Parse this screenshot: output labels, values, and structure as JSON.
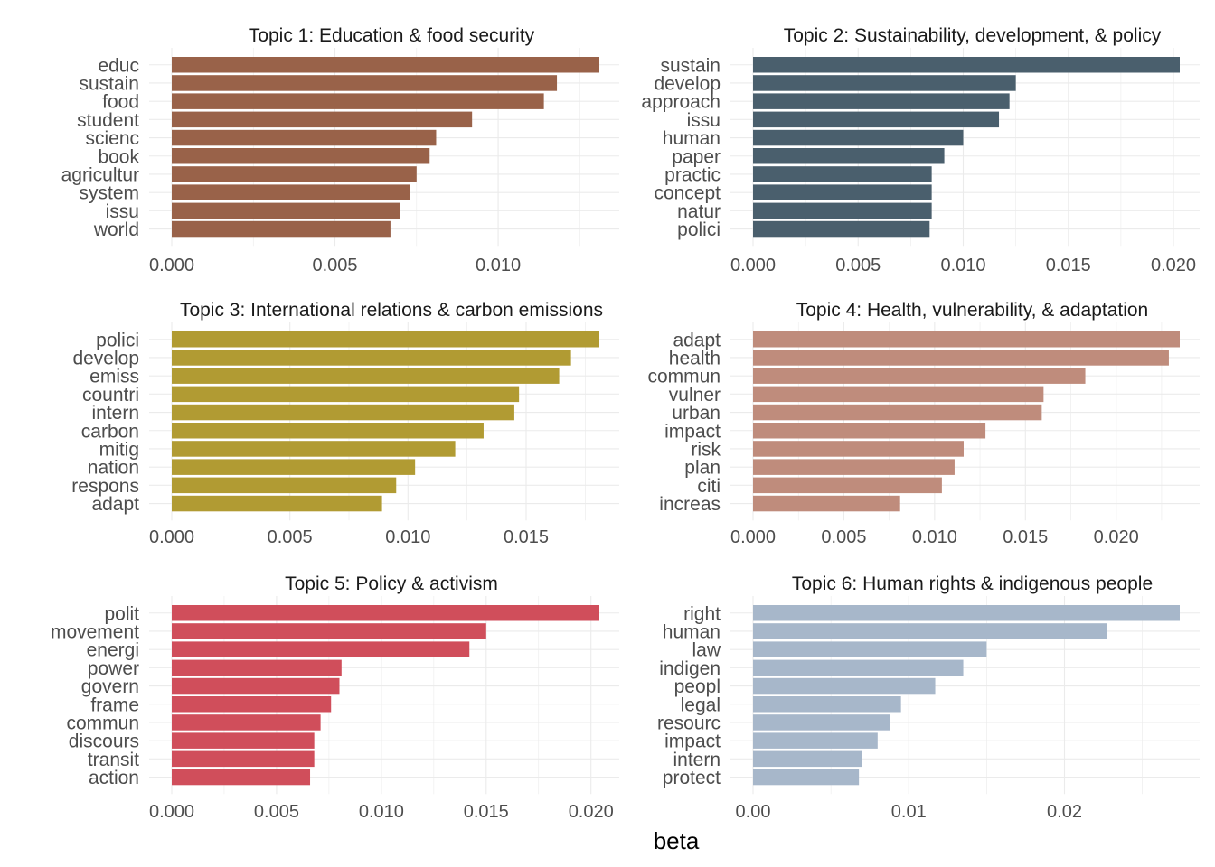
{
  "chart_data": {
    "type": "bar",
    "orientation": "horizontal",
    "xlabel": "beta",
    "grid": true,
    "facets": [
      {
        "title": "Topic 1: Education & food security",
        "color": "#996249",
        "xlim": [
          0,
          0.0131
        ],
        "ticks": [
          0.0,
          0.005,
          0.01
        ],
        "tick_labels": [
          "0.000",
          "0.005",
          "0.010"
        ],
        "categories": [
          "educ",
          "sustain",
          "food",
          "student",
          "scienc",
          "book",
          "agricultur",
          "system",
          "issu",
          "world"
        ],
        "values": [
          0.0131,
          0.0118,
          0.0114,
          0.0092,
          0.0081,
          0.0079,
          0.0075,
          0.0073,
          0.007,
          0.0067
        ]
      },
      {
        "title": "Topic 2: Sustainability, development, & policy",
        "color": "#4a5f6d",
        "xlim": [
          0,
          0.0203
        ],
        "ticks": [
          0.0,
          0.005,
          0.01,
          0.015,
          0.02
        ],
        "tick_labels": [
          "0.000",
          "0.005",
          "0.010",
          "0.015",
          "0.020"
        ],
        "categories": [
          "sustain",
          "develop",
          "approach",
          "issu",
          "human",
          "paper",
          "practic",
          "concept",
          "natur",
          "polici"
        ],
        "values": [
          0.0203,
          0.0125,
          0.0122,
          0.0117,
          0.01,
          0.0091,
          0.0085,
          0.0085,
          0.0085,
          0.0084
        ]
      },
      {
        "title": "Topic 3: International relations & carbon emissions",
        "color": "#b19b33",
        "xlim": [
          0,
          0.0181
        ],
        "ticks": [
          0.0,
          0.005,
          0.01,
          0.015
        ],
        "tick_labels": [
          "0.000",
          "0.005",
          "0.010",
          "0.015"
        ],
        "categories": [
          "polici",
          "develop",
          "emiss",
          "countri",
          "intern",
          "carbon",
          "mitig",
          "nation",
          "respons",
          "adapt"
        ],
        "values": [
          0.0181,
          0.0169,
          0.0164,
          0.0147,
          0.0145,
          0.0132,
          0.012,
          0.0103,
          0.0095,
          0.0089
        ]
      },
      {
        "title": "Topic 4: Health, vulnerability, & adaptation",
        "color": "#bf8c7c",
        "xlim": [
          0,
          0.0235
        ],
        "ticks": [
          0.0,
          0.005,
          0.01,
          0.015,
          0.02
        ],
        "tick_labels": [
          "0.000",
          "0.005",
          "0.010",
          "0.015",
          "0.020"
        ],
        "categories": [
          "adapt",
          "health",
          "commun",
          "vulner",
          "urban",
          "impact",
          "risk",
          "plan",
          "citi",
          "increas"
        ],
        "values": [
          0.0235,
          0.0229,
          0.0183,
          0.016,
          0.0159,
          0.0128,
          0.0116,
          0.0111,
          0.0104,
          0.0081
        ]
      },
      {
        "title": "Topic 5: Policy & activism",
        "color": "#d04e5b",
        "xlim": [
          0,
          0.0204
        ],
        "ticks": [
          0.0,
          0.005,
          0.01,
          0.015,
          0.02
        ],
        "tick_labels": [
          "0.000",
          "0.005",
          "0.010",
          "0.015",
          "0.020"
        ],
        "categories": [
          "polit",
          "movement",
          "energi",
          "power",
          "govern",
          "frame",
          "commun",
          "discours",
          "transit",
          "action"
        ],
        "values": [
          0.0204,
          0.015,
          0.0142,
          0.0081,
          0.008,
          0.0076,
          0.0071,
          0.0068,
          0.0068,
          0.0066
        ]
      },
      {
        "title": "Topic 6: Human rights & indigenous people",
        "color": "#a7b7ca",
        "xlim": [
          0,
          0.0274
        ],
        "ticks": [
          0.0,
          0.01,
          0.02
        ],
        "tick_labels": [
          "0.00",
          "0.01",
          "0.02"
        ],
        "categories": [
          "right",
          "human",
          "law",
          "indigen",
          "peopl",
          "legal",
          "resourc",
          "impact",
          "intern",
          "protect"
        ],
        "values": [
          0.0274,
          0.0227,
          0.015,
          0.0135,
          0.0117,
          0.0095,
          0.0088,
          0.008,
          0.007,
          0.0068
        ]
      }
    ]
  }
}
